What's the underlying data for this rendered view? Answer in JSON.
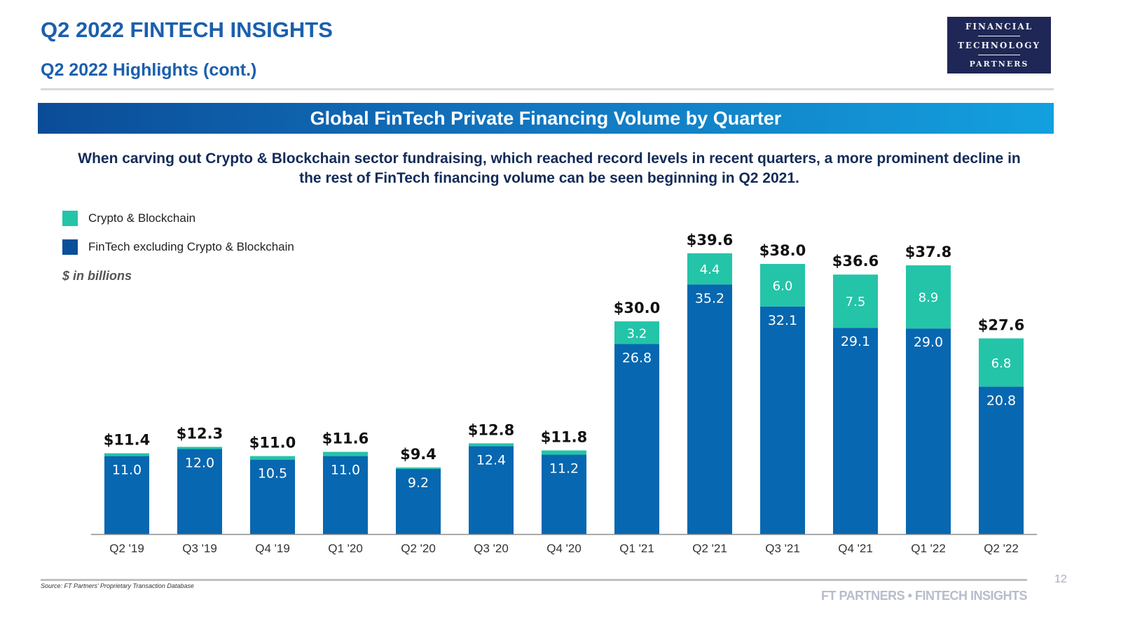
{
  "header": {
    "title": "Q2 2022 FINTECH INSIGHTS",
    "subtitle": "Q2 2022 Highlights (cont.)"
  },
  "logo": {
    "line1": "FINANCIAL",
    "line2": "TECHNOLOGY",
    "line3": "PARTNERS",
    "background": "#1e2756"
  },
  "banner": {
    "title": "Global FinTech Private Financing Volume by Quarter"
  },
  "description": "When carving out Crypto & Blockchain sector fundraising, which reached record levels in recent quarters, a more prominent decline in the rest of FinTech financing volume can be seen beginning in Q2 2021.",
  "footer": {
    "source": "Source: FT Partners’ Proprietary Transaction Database",
    "brand": "FT PARTNERS • FINTECH INSIGHTS",
    "page_number": "12"
  },
  "chart_data": {
    "type": "bar",
    "stacked": true,
    "title": "Global FinTech Private Financing Volume by Quarter",
    "units_note": "$ in billions",
    "xlabel": "",
    "ylabel": "",
    "ylim": [
      0,
      40
    ],
    "grid": false,
    "legend_position": "top-left",
    "categories": [
      "Q2 '19",
      "Q3 '19",
      "Q4 '19",
      "Q1 '20",
      "Q2 '20",
      "Q3 '20",
      "Q4 '20",
      "Q1 '21",
      "Q2 '21",
      "Q3 '21",
      "Q4 '21",
      "Q1 '22",
      "Q2 '22"
    ],
    "series": [
      {
        "name": "FinTech excluding Crypto & Blockchain",
        "color": "#0767b0",
        "legend_color": "#0b4f98",
        "values": [
          11.0,
          12.0,
          10.5,
          11.0,
          9.2,
          12.4,
          11.2,
          26.8,
          35.2,
          32.1,
          29.1,
          29.0,
          20.8
        ],
        "labels": [
          "11.0",
          "12.0",
          "10.5",
          "11.0",
          "9.2",
          "12.4",
          "11.2",
          "26.8",
          "35.2",
          "32.1",
          "29.1",
          "29.0",
          "20.8"
        ]
      },
      {
        "name": "Crypto & Blockchain",
        "color": "#24c4a8",
        "legend_color": "#24c4a8",
        "values": [
          0.4,
          0.3,
          0.5,
          0.6,
          0.2,
          0.4,
          0.6,
          3.2,
          4.4,
          6.0,
          7.5,
          8.9,
          6.8
        ],
        "labels": [
          "",
          "",
          "",
          "",
          "",
          "",
          "",
          "3.2",
          "4.4",
          "6.0",
          "7.5",
          "8.9",
          "6.8"
        ]
      }
    ],
    "totals": [
      11.4,
      12.3,
      11.0,
      11.6,
      9.4,
      12.8,
      11.8,
      30.0,
      39.6,
      38.0,
      36.6,
      37.8,
      27.6
    ],
    "total_labels": [
      "$11.4",
      "$12.3",
      "$11.0",
      "$11.6",
      "$9.4",
      "$12.8",
      "$11.8",
      "$30.0",
      "$39.6",
      "$38.0",
      "$36.6",
      "$37.8",
      "$27.6"
    ]
  }
}
